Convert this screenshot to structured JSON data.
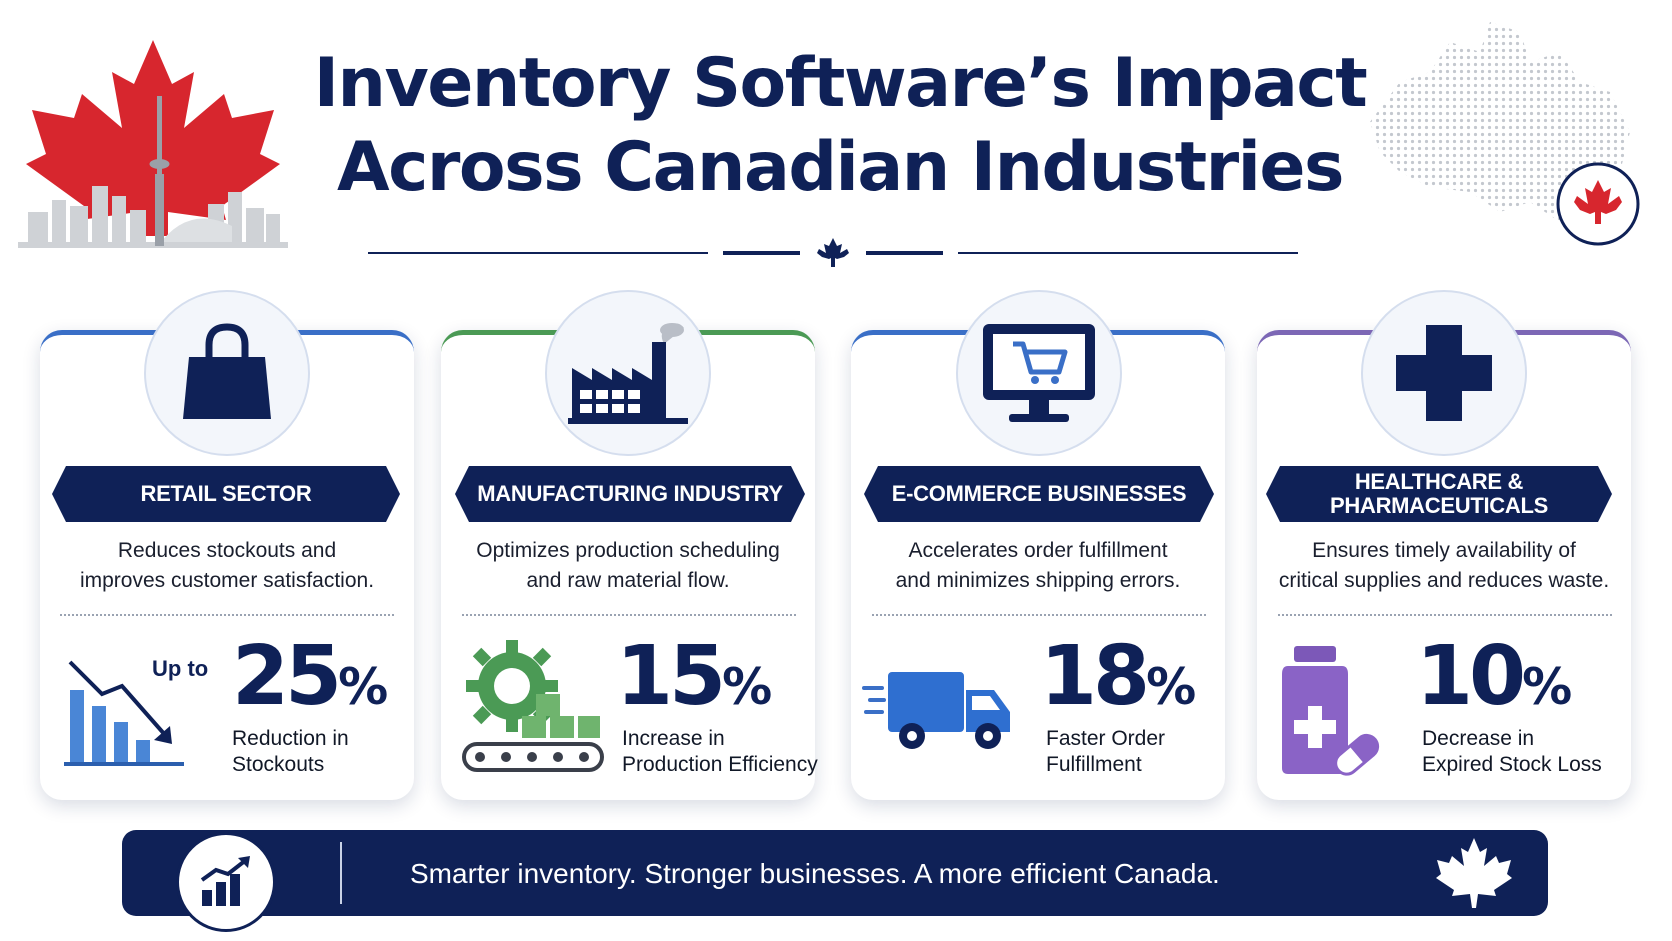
{
  "header": {
    "title_line_1": "Inventory Software’s Impact",
    "title_line_2": "Across Canadian Industries"
  },
  "colors": {
    "navy": "#0f2157",
    "canada_red": "#d7262e",
    "retail_blue": "#3a6fc7",
    "manufacturing_green": "#4b9a55",
    "healthcare_purple": "#7c67b5"
  },
  "cards": [
    {
      "title": "RETAIL SECTOR",
      "description_line_1": "Reduces stockouts and",
      "description_line_2": "improves customer satisfaction.",
      "prefix": "Up to",
      "stat_number": "25",
      "stat_unit": "%",
      "stat_caption_line_1": "Reduction in",
      "stat_caption_line_2": "Stockouts",
      "icon": "shopping-bag-icon",
      "stat_icon": "declining-bar-chart-icon"
    },
    {
      "title": "MANUFACTURING INDUSTRY",
      "description_line_1": "Optimizes production scheduling",
      "description_line_2": "and raw material flow.",
      "stat_number": "15",
      "stat_unit": "%",
      "stat_caption_line_1": "Increase in",
      "stat_caption_line_2": "Production Efficiency",
      "icon": "factory-icon",
      "stat_icon": "gear-conveyor-icon"
    },
    {
      "title": "E-COMMERCE BUSINESSES",
      "description_line_1": "Accelerates order fulfillment",
      "description_line_2": "and minimizes shipping errors.",
      "stat_number": "18",
      "stat_unit": "%",
      "stat_caption_line_1": "Faster Order",
      "stat_caption_line_2": "Fulfillment",
      "icon": "monitor-cart-icon",
      "stat_icon": "delivery-truck-icon"
    },
    {
      "title_line_1": "HEALTHCARE &",
      "title_line_2": "PHARMACEUTICALS",
      "description_line_1": "Ensures timely availability of",
      "description_line_2": "critical supplies and reduces waste.",
      "stat_number": "10",
      "stat_unit": "%",
      "stat_caption_line_1": "Decrease in",
      "stat_caption_line_2": "Expired Stock Loss",
      "icon": "medical-cross-icon",
      "stat_icon": "medicine-bottle-icon"
    }
  ],
  "footer": {
    "tagline": "Smarter inventory. Stronger businesses. A more efficient Canada.",
    "icon": "growth-chart-icon",
    "end_icon": "maple-leaf-icon"
  }
}
